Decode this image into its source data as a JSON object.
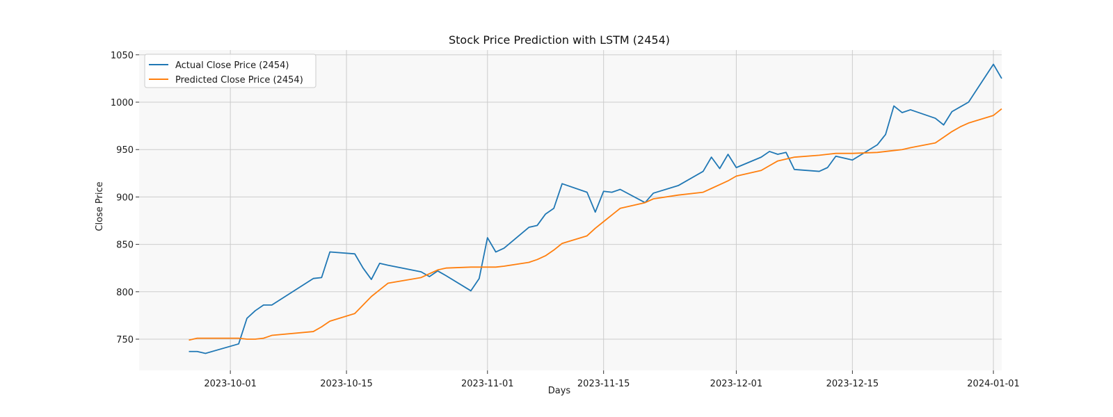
{
  "chart_data": {
    "type": "line",
    "title": "Stock Price Prediction with LSTM (2454)",
    "xlabel": "Days",
    "ylabel": "Close Price",
    "x_axis_type": "date",
    "xlim": [
      "2023-09-20",
      "2024-01-02"
    ],
    "ylim": [
      717,
      1055
    ],
    "x_ticks": [
      "2023-10-01",
      "2023-10-15",
      "2023-11-01",
      "2023-11-15",
      "2023-12-01",
      "2023-12-15",
      "2024-01-01"
    ],
    "y_ticks": [
      750,
      800,
      850,
      900,
      950,
      1000,
      1050
    ],
    "grid": true,
    "legend_position": "top-left",
    "plot_background": "#f8f8f8",
    "series": [
      {
        "name": "Actual Close Price (2454)",
        "color": "#1f77b4",
        "points": [
          [
            "2023-09-26",
            737
          ],
          [
            "2023-09-27",
            737
          ],
          [
            "2023-09-28",
            735
          ],
          [
            "2023-10-02",
            745
          ],
          [
            "2023-10-03",
            772
          ],
          [
            "2023-10-04",
            780
          ],
          [
            "2023-10-05",
            786
          ],
          [
            "2023-10-06",
            786
          ],
          [
            "2023-10-11",
            814
          ],
          [
            "2023-10-12",
            815
          ],
          [
            "2023-10-13",
            842
          ],
          [
            "2023-10-16",
            840
          ],
          [
            "2023-10-17",
            825
          ],
          [
            "2023-10-18",
            813
          ],
          [
            "2023-10-19",
            830
          ],
          [
            "2023-10-20",
            828
          ],
          [
            "2023-10-24",
            821
          ],
          [
            "2023-10-25",
            816
          ],
          [
            "2023-10-26",
            822
          ],
          [
            "2023-10-27",
            817
          ],
          [
            "2023-10-30",
            801
          ],
          [
            "2023-10-31",
            814
          ],
          [
            "2023-11-01",
            857
          ],
          [
            "2023-11-02",
            842
          ],
          [
            "2023-11-03",
            846
          ],
          [
            "2023-11-06",
            868
          ],
          [
            "2023-11-07",
            870
          ],
          [
            "2023-11-08",
            882
          ],
          [
            "2023-11-09",
            888
          ],
          [
            "2023-11-10",
            914
          ],
          [
            "2023-11-13",
            905
          ],
          [
            "2023-11-14",
            884
          ],
          [
            "2023-11-15",
            906
          ],
          [
            "2023-11-16",
            905
          ],
          [
            "2023-11-17",
            908
          ],
          [
            "2023-11-20",
            894
          ],
          [
            "2023-11-21",
            904
          ],
          [
            "2023-11-24",
            912
          ],
          [
            "2023-11-27",
            927
          ],
          [
            "2023-11-28",
            942
          ],
          [
            "2023-11-29",
            930
          ],
          [
            "2023-11-30",
            945
          ],
          [
            "2023-12-01",
            931
          ],
          [
            "2023-12-04",
            942
          ],
          [
            "2023-12-05",
            948
          ],
          [
            "2023-12-06",
            945
          ],
          [
            "2023-12-07",
            947
          ],
          [
            "2023-12-08",
            929
          ],
          [
            "2023-12-11",
            927
          ],
          [
            "2023-12-12",
            931
          ],
          [
            "2023-12-13",
            943
          ],
          [
            "2023-12-14",
            941
          ],
          [
            "2023-12-15",
            939
          ],
          [
            "2023-12-18",
            955
          ],
          [
            "2023-12-19",
            966
          ],
          [
            "2023-12-20",
            996
          ],
          [
            "2023-12-21",
            989
          ],
          [
            "2023-12-22",
            992
          ],
          [
            "2023-12-25",
            983
          ],
          [
            "2023-12-26",
            976
          ],
          [
            "2023-12-27",
            990
          ],
          [
            "2023-12-28",
            995
          ],
          [
            "2023-12-29",
            1000
          ],
          [
            "2024-01-01",
            1040
          ],
          [
            "2024-01-02",
            1025
          ]
        ]
      },
      {
        "name": "Predicted Close Price (2454)",
        "color": "#ff7f0e",
        "points": [
          [
            "2023-09-26",
            749
          ],
          [
            "2023-09-27",
            751
          ],
          [
            "2023-09-28",
            751
          ],
          [
            "2023-10-02",
            751
          ],
          [
            "2023-10-03",
            750
          ],
          [
            "2023-10-04",
            750
          ],
          [
            "2023-10-05",
            751
          ],
          [
            "2023-10-06",
            754
          ],
          [
            "2023-10-11",
            758
          ],
          [
            "2023-10-12",
            763
          ],
          [
            "2023-10-13",
            769
          ],
          [
            "2023-10-16",
            777
          ],
          [
            "2023-10-17",
            786
          ],
          [
            "2023-10-18",
            795
          ],
          [
            "2023-10-19",
            802
          ],
          [
            "2023-10-20",
            809
          ],
          [
            "2023-10-24",
            815
          ],
          [
            "2023-10-25",
            819
          ],
          [
            "2023-10-26",
            823
          ],
          [
            "2023-10-27",
            825
          ],
          [
            "2023-10-30",
            826
          ],
          [
            "2023-10-31",
            826
          ],
          [
            "2023-11-01",
            826
          ],
          [
            "2023-11-02",
            826
          ],
          [
            "2023-11-03",
            827
          ],
          [
            "2023-11-06",
            831
          ],
          [
            "2023-11-07",
            834
          ],
          [
            "2023-11-08",
            838
          ],
          [
            "2023-11-09",
            844
          ],
          [
            "2023-11-10",
            851
          ],
          [
            "2023-11-13",
            859
          ],
          [
            "2023-11-14",
            867
          ],
          [
            "2023-11-15",
            874
          ],
          [
            "2023-11-16",
            881
          ],
          [
            "2023-11-17",
            888
          ],
          [
            "2023-11-20",
            894
          ],
          [
            "2023-11-21",
            898
          ],
          [
            "2023-11-24",
            902
          ],
          [
            "2023-11-27",
            905
          ],
          [
            "2023-11-28",
            909
          ],
          [
            "2023-11-29",
            913
          ],
          [
            "2023-11-30",
            917
          ],
          [
            "2023-12-01",
            922
          ],
          [
            "2023-12-04",
            928
          ],
          [
            "2023-12-05",
            933
          ],
          [
            "2023-12-06",
            938
          ],
          [
            "2023-12-07",
            940
          ],
          [
            "2023-12-08",
            942
          ],
          [
            "2023-12-11",
            944
          ],
          [
            "2023-12-12",
            945
          ],
          [
            "2023-12-13",
            946
          ],
          [
            "2023-12-14",
            946
          ],
          [
            "2023-12-15",
            946
          ],
          [
            "2023-12-18",
            947
          ],
          [
            "2023-12-19",
            948
          ],
          [
            "2023-12-20",
            949
          ],
          [
            "2023-12-21",
            950
          ],
          [
            "2023-12-22",
            952
          ],
          [
            "2023-12-25",
            957
          ],
          [
            "2023-12-26",
            963
          ],
          [
            "2023-12-27",
            969
          ],
          [
            "2023-12-28",
            974
          ],
          [
            "2023-12-29",
            978
          ],
          [
            "2024-01-01",
            986
          ],
          [
            "2024-01-02",
            993
          ]
        ]
      }
    ]
  }
}
